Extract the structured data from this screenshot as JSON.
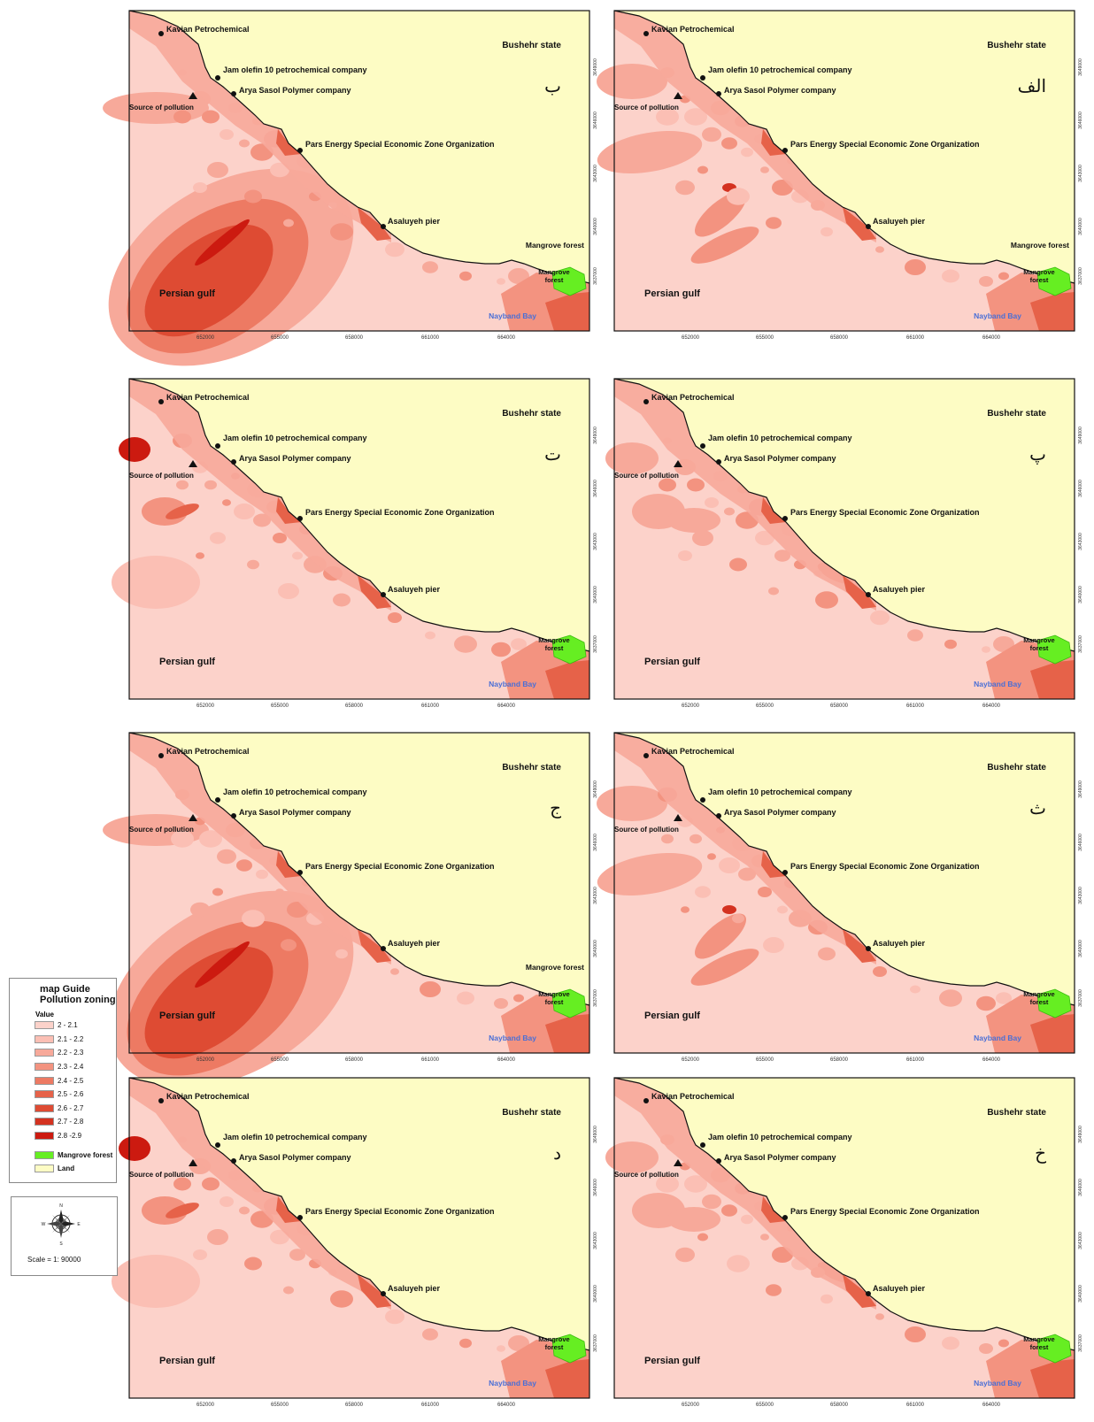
{
  "labels": {
    "kavian": "Kavian Petrochemical",
    "bushehr": "Bushehr state",
    "jam": "Jam olefin 10 petrochemical company",
    "arya": "Arya Sasol Polymer company",
    "source": "Source of pollution",
    "pars": "Pars Energy Special Economic Zone Organization",
    "asaluyeh": "Asaluyeh pier",
    "mangrove_forest": "Mangrove forest",
    "mangrove": "Mangrove",
    "forest": "forest",
    "persian_gulf": "Persian gulf",
    "nayband": "Nayband Bay"
  },
  "panels": [
    {
      "id": "b",
      "letter": "ب",
      "show_mangrove_label": true,
      "show_source_label": true,
      "pattern": "A"
    },
    {
      "id": "alef",
      "letter": "الف",
      "show_mangrove_label": true,
      "show_source_label": true,
      "pattern": "B"
    },
    {
      "id": "te",
      "letter": "ت",
      "show_mangrove_label": false,
      "show_source_label": true,
      "pattern": "C"
    },
    {
      "id": "pe",
      "letter": "پ",
      "show_mangrove_label": false,
      "show_source_label": true,
      "pattern": "D"
    },
    {
      "id": "jim",
      "letter": "ج",
      "show_mangrove_label": true,
      "show_source_label": true,
      "pattern": "A"
    },
    {
      "id": "the",
      "letter": "ث",
      "show_mangrove_label": false,
      "show_source_label": true,
      "pattern": "B"
    },
    {
      "id": "dal",
      "letter": "د",
      "show_mangrove_label": false,
      "show_source_label": true,
      "pattern": "C"
    },
    {
      "id": "khe",
      "letter": "خ",
      "show_mangrove_label": false,
      "show_source_label": true,
      "pattern": "D"
    }
  ],
  "x_ticks": [
    "652000",
    "655000",
    "658000",
    "661000",
    "664000"
  ],
  "y_ticks": [
    "3649000",
    "3646000",
    "3643000",
    "3640000",
    "3637000"
  ],
  "legend": {
    "title1": "map Guide",
    "title2": "Pollution zoning",
    "value_heading": "Value",
    "classes": [
      {
        "label": "2 - 2.1",
        "color": "#fcd2ca"
      },
      {
        "label": "2.1 - 2.2",
        "color": "#fbbfb4"
      },
      {
        "label": "2.2 - 2.3",
        "color": "#f7a99a"
      },
      {
        "label": "2.3 - 2.4",
        "color": "#f39380"
      },
      {
        "label": "2.4 - 2.5",
        "color": "#ed7a63"
      },
      {
        "label": "2.5 - 2.6",
        "color": "#e66249"
      },
      {
        "label": "2.6 - 2.7",
        "color": "#de4b33"
      },
      {
        "label": "2.7 - 2.8",
        "color": "#d43220"
      },
      {
        "label": "2.8 -2.9",
        "color": "#cc1a10"
      }
    ],
    "mangrove_label": "Mangrove forest",
    "mangrove_color": "#66ee22",
    "land_label": "Land",
    "land_color": "#fdfcc4"
  },
  "compass": {
    "n": "N",
    "s": "S",
    "e": "E",
    "w": "W",
    "scale": "Scale =   1: 90000"
  }
}
